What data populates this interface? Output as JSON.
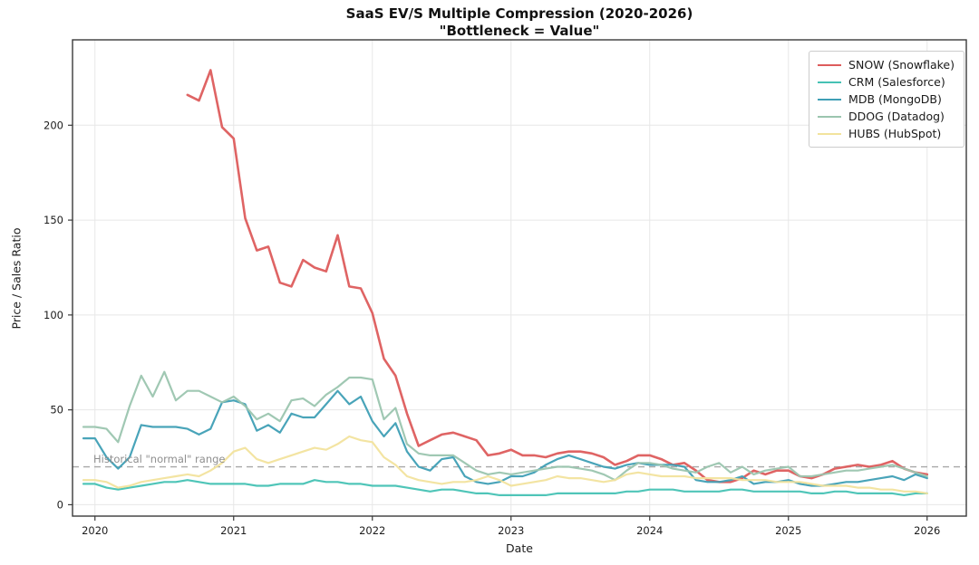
{
  "title": "SaaS EV/S Multiple Compression (2020-2026)",
  "subtitle": "\"Bottleneck = Value\"",
  "chart_data": {
    "type": "line",
    "title": "SaaS EV/S Multiple Compression (2020-2026)",
    "subtitle": "\"Bottleneck = Value\"",
    "xlabel": "Date",
    "ylabel": "Price / Sales Ratio",
    "grid": true,
    "legend_position": "upper right",
    "x_tick_labels": [
      "2020",
      "2021",
      "2022",
      "2023",
      "2024",
      "2025",
      "2026"
    ],
    "y_tick_labels": [
      "0",
      "50",
      "100",
      "150",
      "200"
    ],
    "y_ticks": [
      0,
      50,
      100,
      150,
      200
    ],
    "ylim": [
      -6,
      245
    ],
    "annotation": {
      "text": "Historical \"normal\" range",
      "line_value": 20,
      "line_style": "dashed",
      "line_color": "#a8a8a8",
      "text_color": "#8f8f8f"
    },
    "x_months": [
      "2019-12",
      "2020-01",
      "2020-02",
      "2020-03",
      "2020-04",
      "2020-05",
      "2020-06",
      "2020-07",
      "2020-08",
      "2020-09",
      "2020-10",
      "2020-11",
      "2020-12",
      "2021-01",
      "2021-02",
      "2021-03",
      "2021-04",
      "2021-05",
      "2021-06",
      "2021-07",
      "2021-08",
      "2021-09",
      "2021-10",
      "2021-11",
      "2021-12",
      "2022-01",
      "2022-02",
      "2022-03",
      "2022-04",
      "2022-05",
      "2022-06",
      "2022-07",
      "2022-08",
      "2022-09",
      "2022-10",
      "2022-11",
      "2022-12",
      "2023-01",
      "2023-02",
      "2023-03",
      "2023-04",
      "2023-05",
      "2023-06",
      "2023-07",
      "2023-08",
      "2023-09",
      "2023-10",
      "2023-11",
      "2023-12",
      "2024-01",
      "2024-02",
      "2024-03",
      "2024-04",
      "2024-05",
      "2024-06",
      "2024-07",
      "2024-08",
      "2024-09",
      "2024-10",
      "2024-11",
      "2024-12",
      "2025-01",
      "2025-02",
      "2025-03",
      "2025-04",
      "2025-05",
      "2025-06",
      "2025-07",
      "2025-08",
      "2025-09",
      "2025-10",
      "2025-11",
      "2025-12",
      "2026-01"
    ],
    "series": [
      {
        "name": "SNOW (Snowflake)",
        "color": "#dd5c5c",
        "linewidth": 2.6,
        "values": [
          null,
          null,
          null,
          null,
          null,
          null,
          null,
          null,
          null,
          216,
          213,
          229,
          199,
          193,
          151,
          134,
          136,
          117,
          115,
          129,
          125,
          123,
          142,
          115,
          114,
          101,
          77,
          68,
          48,
          31,
          34,
          37,
          38,
          36,
          34,
          26,
          27,
          29,
          26,
          26,
          25,
          27,
          28,
          28,
          27,
          25,
          21,
          23,
          26,
          26,
          24,
          21,
          22,
          18,
          13,
          12,
          12,
          14,
          18,
          16,
          18,
          18,
          15,
          14,
          16,
          19,
          20,
          21,
          20,
          21,
          23,
          19,
          17,
          16
        ]
      },
      {
        "name": "CRM (Salesforce)",
        "color": "#46c2b4",
        "linewidth": 2.2,
        "values": [
          11,
          11,
          9,
          8,
          9,
          10,
          11,
          12,
          12,
          13,
          12,
          11,
          11,
          11,
          11,
          10,
          10,
          11,
          11,
          11,
          13,
          12,
          12,
          11,
          11,
          10,
          10,
          10,
          9,
          8,
          7,
          8,
          8,
          7,
          6,
          6,
          5,
          5,
          5,
          5,
          5,
          6,
          6,
          6,
          6,
          6,
          6,
          7,
          7,
          8,
          8,
          8,
          7,
          7,
          7,
          7,
          8,
          8,
          7,
          7,
          7,
          7,
          7,
          6,
          6,
          7,
          7,
          6,
          6,
          6,
          6,
          5,
          6,
          6
        ]
      },
      {
        "name": "MDB (MongoDB)",
        "color": "#3f9fb5",
        "linewidth": 2.2,
        "values": [
          35,
          35,
          25,
          19,
          25,
          42,
          41,
          41,
          41,
          40,
          37,
          40,
          54,
          55,
          53,
          39,
          42,
          38,
          48,
          46,
          46,
          53,
          60,
          53,
          57,
          44,
          36,
          43,
          28,
          20,
          18,
          24,
          25,
          15,
          12,
          11,
          12,
          15,
          15,
          17,
          21,
          24,
          26,
          24,
          22,
          20,
          19,
          21,
          22,
          21,
          21,
          21,
          20,
          13,
          12,
          12,
          13,
          15,
          11,
          12,
          12,
          13,
          11,
          10,
          10,
          11,
          12,
          12,
          13,
          14,
          15,
          13,
          16,
          14
        ]
      },
      {
        "name": "DDOG (Datadog)",
        "color": "#9bc5af",
        "linewidth": 2.2,
        "values": [
          41,
          41,
          40,
          33,
          52,
          68,
          57,
          70,
          55,
          60,
          60,
          57,
          54,
          57,
          52,
          45,
          48,
          44,
          55,
          56,
          52,
          58,
          62,
          67,
          67,
          66,
          45,
          51,
          32,
          27,
          26,
          26,
          26,
          22,
          18,
          16,
          17,
          16,
          17,
          18,
          19,
          20,
          20,
          19,
          18,
          16,
          13,
          18,
          22,
          22,
          21,
          19,
          18,
          17,
          20,
          22,
          17,
          20,
          16,
          18,
          19,
          20,
          15,
          15,
          16,
          17,
          18,
          18,
          19,
          20,
          21,
          19,
          17,
          15
        ]
      },
      {
        "name": "HUBS (HubSpot)",
        "color": "#f2e39d",
        "linewidth": 2.2,
        "values": [
          13,
          13,
          12,
          9,
          10,
          12,
          13,
          14,
          15,
          16,
          15,
          18,
          22,
          28,
          30,
          24,
          22,
          24,
          26,
          28,
          30,
          29,
          32,
          36,
          34,
          33,
          25,
          21,
          15,
          13,
          12,
          11,
          12,
          12,
          13,
          15,
          13,
          10,
          11,
          12,
          13,
          15,
          14,
          14,
          13,
          12,
          13,
          16,
          17,
          16,
          15,
          15,
          15,
          14,
          14,
          14,
          14,
          13,
          13,
          13,
          12,
          12,
          12,
          11,
          10,
          10,
          10,
          9,
          9,
          8,
          8,
          7,
          7,
          6
        ]
      }
    ]
  }
}
